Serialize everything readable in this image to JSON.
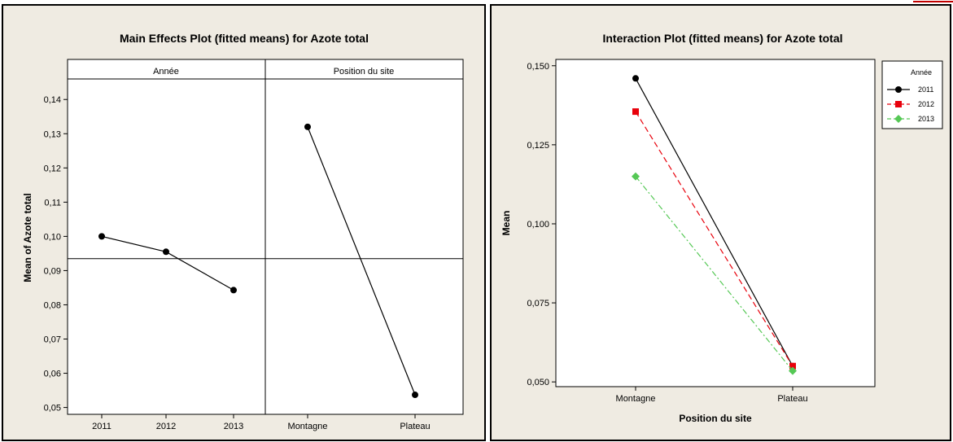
{
  "chart_data": [
    {
      "type": "line",
      "title": "Main Effects Plot (fitted means) for Azote total",
      "ylabel": "Mean of Azote total",
      "ylim": [
        0.048,
        0.146
      ],
      "yticks": [
        "0,14",
        "0,13",
        "0,12",
        "0,11",
        "0,10",
        "0,09",
        "0,08",
        "0,07",
        "0,06",
        "0,05"
      ],
      "ytick_values": [
        0.14,
        0.13,
        0.12,
        0.11,
        0.1,
        0.09,
        0.08,
        0.07,
        0.06,
        0.05
      ],
      "overall_mean": 0.0935,
      "grid": false,
      "facets": [
        {
          "label": "Année",
          "categories": [
            "2011",
            "2012",
            "2013"
          ],
          "values": [
            0.1,
            0.0955,
            0.0843
          ]
        },
        {
          "label": "Position du site",
          "categories": [
            "Montagne",
            "Plateau"
          ],
          "values": [
            0.132,
            0.0537
          ]
        }
      ]
    },
    {
      "type": "line",
      "title": "Interaction Plot (fitted means) for Azote total",
      "xlabel": "Position du site",
      "ylabel": "Mean",
      "categories": [
        "Montagne",
        "Plateau"
      ],
      "ylim": [
        0.0485,
        0.152
      ],
      "yticks": [
        "0,150",
        "0,125",
        "0,100",
        "0,075",
        "0,050"
      ],
      "ytick_values": [
        0.15,
        0.125,
        0.1,
        0.075,
        0.05
      ],
      "grid": false,
      "legend": {
        "title": "Année",
        "position": "right"
      },
      "series": [
        {
          "name": "2011",
          "values": [
            0.146,
            0.055
          ],
          "color": "#000000",
          "dash": "solid",
          "marker": "circle"
        },
        {
          "name": "2012",
          "values": [
            0.1355,
            0.055
          ],
          "color": "#e8000b",
          "dash": "dashed",
          "marker": "square"
        },
        {
          "name": "2013",
          "values": [
            0.115,
            0.0535
          ],
          "color": "#55c855",
          "dash": "dashdot",
          "marker": "diamond"
        }
      ]
    }
  ]
}
